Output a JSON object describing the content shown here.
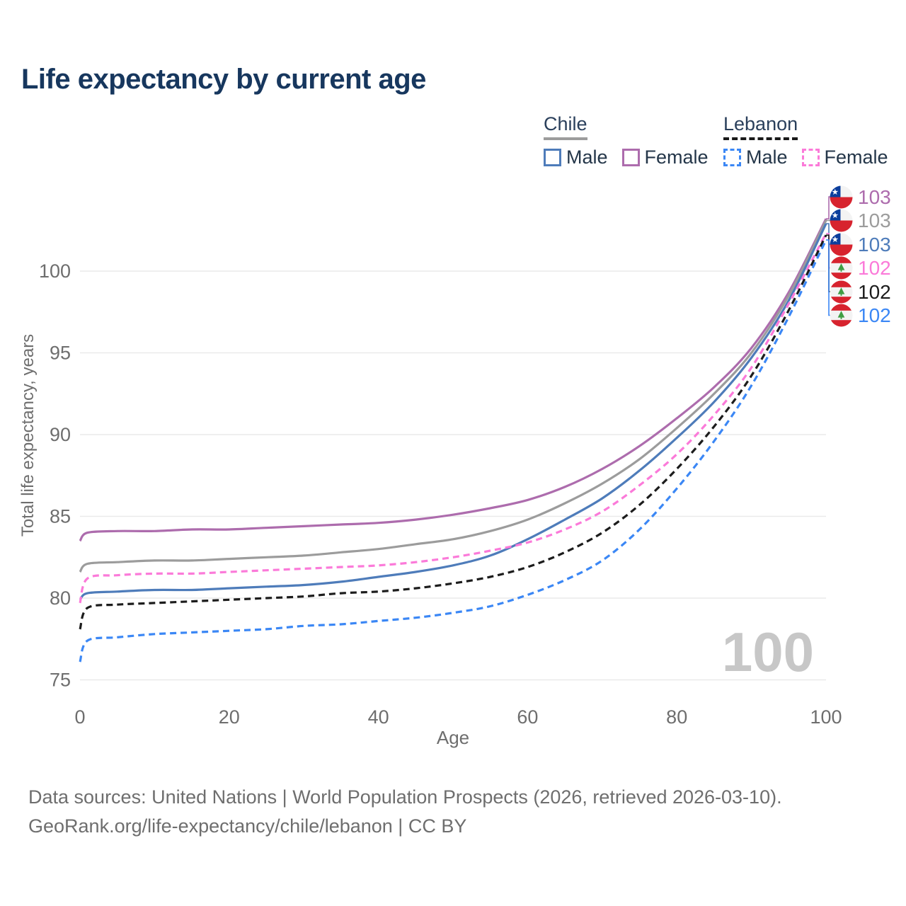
{
  "title": "Life expectancy by current age",
  "legend": {
    "groups": [
      {
        "label": "Chile",
        "entries": [
          {
            "label": "Male"
          },
          {
            "label": "Female"
          }
        ]
      },
      {
        "label": "Lebanon",
        "entries": [
          {
            "label": "Male"
          },
          {
            "label": "Female"
          }
        ]
      }
    ]
  },
  "chart_data": {
    "type": "line",
    "title": "Life expectancy by current age",
    "xlabel": "Age",
    "ylabel": "Total life expectancy, years",
    "xlim": [
      0,
      100
    ],
    "ylim": [
      75,
      104
    ],
    "xticks": [
      0,
      20,
      40,
      60,
      80,
      100
    ],
    "yticks": [
      75,
      80,
      85,
      90,
      95,
      100
    ],
    "grid": true,
    "legend_position": "top-right",
    "watermark": "100",
    "x": [
      0,
      1,
      5,
      10,
      15,
      20,
      25,
      30,
      35,
      40,
      45,
      50,
      55,
      60,
      65,
      70,
      75,
      80,
      85,
      90,
      95,
      100
    ],
    "series": [
      {
        "name": "Chile Female",
        "country": "chile",
        "sex": "female",
        "style": "solid",
        "color": "#ad6cad",
        "end_label": "103",
        "values": [
          83.5,
          84.0,
          84.1,
          84.1,
          84.2,
          84.2,
          84.3,
          84.4,
          84.5,
          84.6,
          84.8,
          85.1,
          85.5,
          86.0,
          86.8,
          87.9,
          89.3,
          91.0,
          92.9,
          95.3,
          98.7,
          103.2
        ]
      },
      {
        "name": "Chile Both sexes",
        "country": "chile",
        "sex": "both",
        "style": "solid",
        "color": "#9c9c9c",
        "end_label": "103",
        "values": [
          81.6,
          82.1,
          82.2,
          82.3,
          82.3,
          82.4,
          82.5,
          82.6,
          82.8,
          83.0,
          83.3,
          83.6,
          84.1,
          84.8,
          85.8,
          87.0,
          88.5,
          90.4,
          92.5,
          95.0,
          98.5,
          103.1
        ]
      },
      {
        "name": "Chile Male",
        "country": "chile",
        "sex": "male",
        "style": "solid",
        "color": "#4e7cba",
        "end_label": "103",
        "values": [
          79.9,
          80.3,
          80.4,
          80.5,
          80.5,
          80.6,
          80.7,
          80.8,
          81.0,
          81.3,
          81.6,
          82.0,
          82.6,
          83.6,
          84.8,
          86.1,
          87.8,
          89.8,
          92.0,
          94.7,
          98.2,
          102.9
        ]
      },
      {
        "name": "Lebanon Female",
        "country": "lebanon",
        "sex": "female",
        "style": "dashed",
        "color": "#fb7ad9",
        "end_label": "102",
        "values": [
          79.7,
          81.2,
          81.4,
          81.5,
          81.5,
          81.6,
          81.7,
          81.8,
          81.9,
          82.0,
          82.2,
          82.5,
          82.9,
          83.4,
          84.2,
          85.3,
          86.9,
          88.8,
          91.2,
          94.1,
          98.0,
          102.3
        ]
      },
      {
        "name": "Lebanon Both sexes",
        "country": "lebanon",
        "sex": "both",
        "style": "dashed",
        "color": "#1c1c1c",
        "end_label": "102",
        "values": [
          78.1,
          79.4,
          79.6,
          79.7,
          79.8,
          79.9,
          80.0,
          80.1,
          80.3,
          80.4,
          80.6,
          80.9,
          81.3,
          81.9,
          82.8,
          84.0,
          85.7,
          87.9,
          90.5,
          93.6,
          97.6,
          102.2
        ]
      },
      {
        "name": "Lebanon Male",
        "country": "lebanon",
        "sex": "male",
        "style": "dashed",
        "color": "#3b87f5",
        "end_label": "102",
        "values": [
          76.1,
          77.4,
          77.6,
          77.8,
          77.9,
          78.0,
          78.1,
          78.3,
          78.4,
          78.6,
          78.8,
          79.1,
          79.5,
          80.2,
          81.1,
          82.3,
          84.2,
          86.7,
          89.6,
          93.0,
          97.2,
          101.9
        ]
      }
    ]
  },
  "footer": {
    "line1": "Data sources: United Nations | World Population Prospects (2026, retrieved 2026-03-10).",
    "line2": "GeoRank.org/life-expectancy/chile/lebanon | CC BY"
  }
}
